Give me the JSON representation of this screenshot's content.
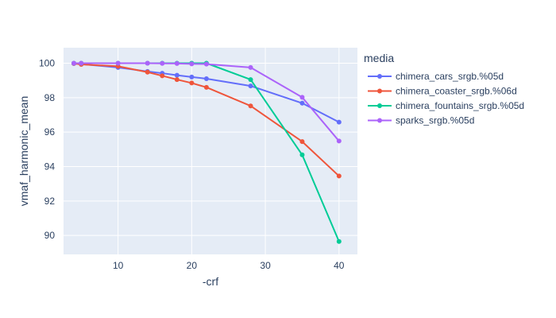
{
  "chart_data": {
    "type": "line",
    "xlabel": "-crf",
    "ylabel": "vmaf_harmonic_mean",
    "xlim": [
      2.6,
      42.5
    ],
    "ylim": [
      88.9,
      100.9
    ],
    "x_ticks": [
      10,
      20,
      30,
      40
    ],
    "y_ticks": [
      90,
      92,
      94,
      96,
      98,
      100
    ],
    "grid": true,
    "legend_title": "media",
    "legend_position": "right",
    "series": [
      {
        "name": "chimera_cars_srgb.%05d",
        "color": "#636efa",
        "points": [
          [
            4,
            99.98
          ],
          [
            5,
            99.95
          ],
          [
            10,
            99.75
          ],
          [
            14,
            99.52
          ],
          [
            16,
            99.42
          ],
          [
            18,
            99.3
          ],
          [
            20,
            99.2
          ],
          [
            22,
            99.1
          ],
          [
            28,
            98.68
          ],
          [
            35,
            97.68
          ],
          [
            40,
            96.58
          ]
        ]
      },
      {
        "name": "chimera_coaster_srgb.%06d",
        "color": "#ef553b",
        "points": [
          [
            4,
            99.98
          ],
          [
            5,
            99.93
          ],
          [
            10,
            99.82
          ],
          [
            14,
            99.48
          ],
          [
            16,
            99.27
          ],
          [
            18,
            99.05
          ],
          [
            20,
            98.85
          ],
          [
            22,
            98.6
          ],
          [
            28,
            97.52
          ],
          [
            35,
            95.45
          ],
          [
            40,
            93.45
          ]
        ]
      },
      {
        "name": "chimera_fountains_srgb.%05d",
        "color": "#00cc96",
        "points": [
          [
            4,
            100
          ],
          [
            5,
            100
          ],
          [
            10,
            100
          ],
          [
            14,
            100
          ],
          [
            16,
            100
          ],
          [
            18,
            100
          ],
          [
            20,
            100
          ],
          [
            22,
            100
          ],
          [
            28,
            99.05
          ],
          [
            35,
            94.68
          ],
          [
            40,
            89.65
          ]
        ]
      },
      {
        "name": "sparks_srgb.%05d",
        "color": "#ab63fa",
        "points": [
          [
            4,
            100
          ],
          [
            5,
            100
          ],
          [
            10,
            100
          ],
          [
            14,
            100
          ],
          [
            16,
            99.99
          ],
          [
            18,
            99.98
          ],
          [
            20,
            99.96
          ],
          [
            22,
            99.95
          ],
          [
            28,
            99.75
          ],
          [
            35,
            98.02
          ],
          [
            40,
            95.48
          ]
        ]
      }
    ]
  }
}
